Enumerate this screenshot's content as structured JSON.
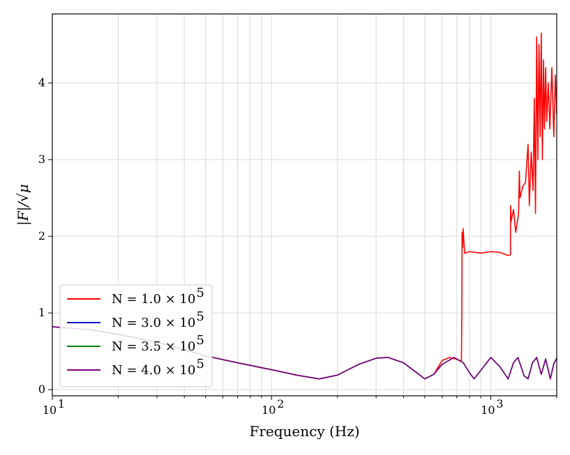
{
  "chart_data": {
    "type": "line",
    "title": "",
    "xlabel": "Frequency (Hz)",
    "ylabel": "|F|/√μ",
    "xscale": "log",
    "xlim": [
      10,
      2000
    ],
    "ylim": [
      -0.08,
      4.9
    ],
    "grid": true,
    "legend_position": "lower-left",
    "x_ticks": [
      {
        "value": 10,
        "base": "10",
        "exp": "1"
      },
      {
        "value": 100,
        "base": "10",
        "exp": "2"
      },
      {
        "value": 1000,
        "base": "10",
        "exp": "3"
      }
    ],
    "y_ticks": [
      {
        "value": 0,
        "label": "0"
      },
      {
        "value": 1,
        "label": "1"
      },
      {
        "value": 2,
        "label": "2"
      },
      {
        "value": 3,
        "label": "3"
      },
      {
        "value": 4,
        "label": "4"
      }
    ],
    "series": [
      {
        "name": "N = 1.0 × 10",
        "name_exp": "5",
        "color": "#ff0000",
        "x": [
          10,
          15,
          20,
          30,
          50,
          70,
          100,
          130,
          165,
          200,
          250,
          300,
          340,
          400,
          450,
          500,
          550,
          600,
          650,
          690,
          720,
          735,
          738,
          740,
          743,
          748,
          760,
          800,
          900,
          1000,
          1100,
          1200,
          1230,
          1232,
          1240,
          1270,
          1300,
          1340,
          1350,
          1360,
          1400,
          1440,
          1480,
          1500,
          1530,
          1560,
          1580,
          1600,
          1620,
          1640,
          1660,
          1680,
          1700,
          1720,
          1740,
          1760,
          1780,
          1800,
          1830,
          1860,
          1900,
          1940,
          1970,
          2000
        ],
        "y": [
          0.82,
          0.78,
          0.72,
          0.62,
          0.44,
          0.35,
          0.26,
          0.19,
          0.14,
          0.19,
          0.33,
          0.41,
          0.42,
          0.35,
          0.24,
          0.14,
          0.2,
          0.38,
          0.42,
          0.4,
          0.38,
          0.38,
          1.0,
          2.05,
          1.85,
          2.1,
          1.78,
          1.8,
          1.78,
          1.8,
          1.79,
          1.75,
          1.76,
          2.4,
          2.2,
          2.35,
          2.05,
          2.3,
          2.85,
          2.5,
          2.65,
          2.7,
          3.2,
          2.4,
          3.1,
          2.6,
          3.8,
          2.3,
          4.6,
          3.0,
          4.5,
          3.3,
          4.65,
          3.0,
          4.3,
          3.4,
          4.2,
          3.5,
          4.0,
          3.4,
          4.2,
          3.3,
          4.1,
          3.6
        ]
      },
      {
        "name": "N = 3.0 × 10",
        "name_exp": "5",
        "color": "#0000cc",
        "x": [
          10,
          15,
          20,
          30,
          50,
          70,
          100,
          130,
          165,
          200,
          250,
          300,
          340,
          400,
          450,
          500,
          550,
          600,
          680,
          750,
          800,
          840,
          900,
          1000,
          1100,
          1200,
          1270,
          1330,
          1420,
          1480,
          1550,
          1620,
          1700,
          1780,
          1870,
          1940,
          2000
        ],
        "y": [
          0.82,
          0.78,
          0.72,
          0.62,
          0.44,
          0.35,
          0.26,
          0.19,
          0.14,
          0.19,
          0.33,
          0.41,
          0.42,
          0.35,
          0.24,
          0.14,
          0.2,
          0.33,
          0.42,
          0.35,
          0.22,
          0.14,
          0.25,
          0.42,
          0.3,
          0.14,
          0.35,
          0.42,
          0.18,
          0.14,
          0.35,
          0.42,
          0.2,
          0.4,
          0.14,
          0.34,
          0.41
        ]
      },
      {
        "name": "N = 3.5 × 10",
        "name_exp": "5",
        "color": "#008000",
        "x": [
          10,
          15,
          20,
          30,
          50,
          70,
          100,
          130,
          165,
          200,
          250,
          300,
          340,
          400,
          450,
          500,
          550,
          600,
          680,
          750,
          800,
          840,
          900,
          1000,
          1100,
          1200,
          1270,
          1330,
          1420,
          1480,
          1550,
          1620,
          1700,
          1780,
          1870,
          1940,
          2000
        ],
        "y": [
          0.82,
          0.78,
          0.72,
          0.62,
          0.44,
          0.35,
          0.26,
          0.19,
          0.14,
          0.19,
          0.33,
          0.41,
          0.42,
          0.35,
          0.24,
          0.14,
          0.2,
          0.33,
          0.42,
          0.35,
          0.22,
          0.14,
          0.25,
          0.42,
          0.3,
          0.14,
          0.35,
          0.42,
          0.18,
          0.14,
          0.35,
          0.42,
          0.2,
          0.4,
          0.14,
          0.34,
          0.41
        ]
      },
      {
        "name": "N = 4.0 × 10",
        "name_exp": "5",
        "color": "#800080",
        "x": [
          10,
          15,
          20,
          30,
          50,
          70,
          100,
          130,
          165,
          200,
          250,
          300,
          340,
          400,
          450,
          500,
          550,
          600,
          680,
          750,
          800,
          840,
          900,
          1000,
          1100,
          1200,
          1270,
          1330,
          1420,
          1480,
          1550,
          1620,
          1700,
          1780,
          1870,
          1940,
          2000
        ],
        "y": [
          0.82,
          0.78,
          0.72,
          0.62,
          0.44,
          0.35,
          0.26,
          0.19,
          0.14,
          0.19,
          0.33,
          0.41,
          0.42,
          0.35,
          0.24,
          0.14,
          0.2,
          0.33,
          0.42,
          0.35,
          0.22,
          0.14,
          0.25,
          0.42,
          0.3,
          0.14,
          0.35,
          0.42,
          0.18,
          0.14,
          0.35,
          0.42,
          0.2,
          0.4,
          0.14,
          0.34,
          0.41
        ]
      }
    ]
  }
}
